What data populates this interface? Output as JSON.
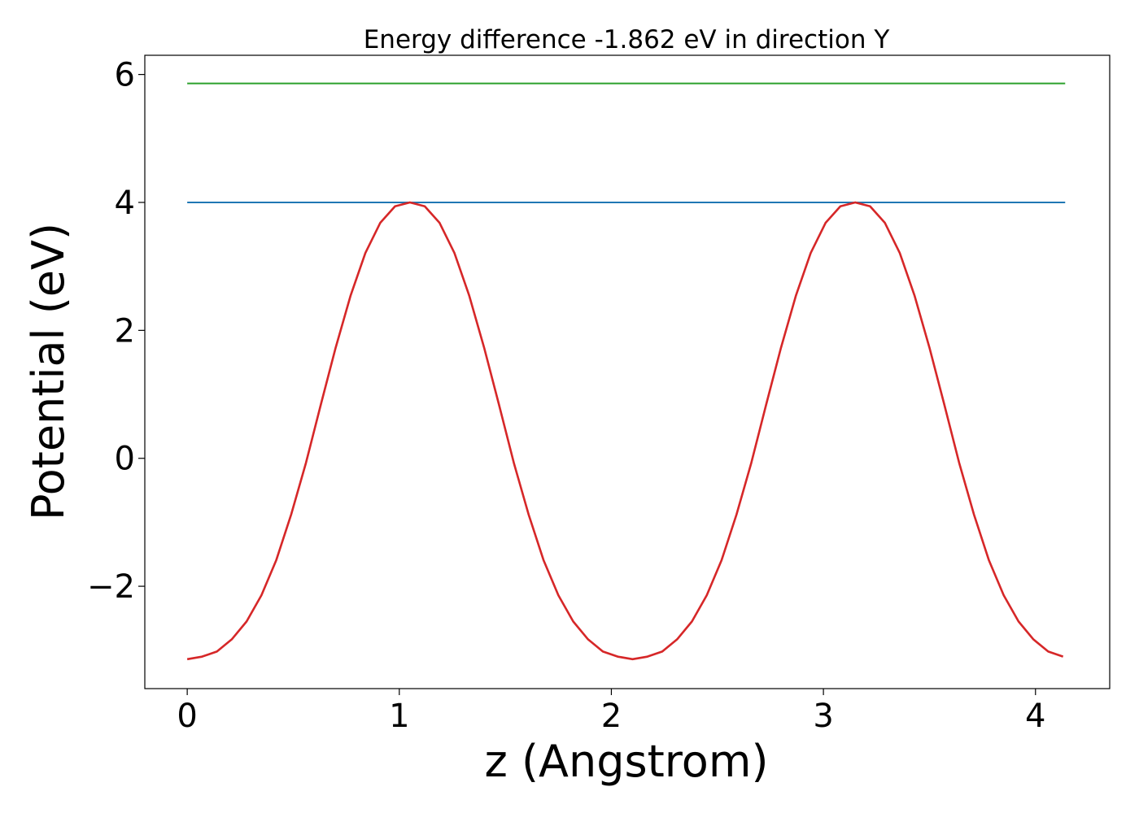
{
  "chart_data": {
    "type": "line",
    "title": "Energy difference -1.862 eV in direction Y",
    "xlabel": "z (Angstrom)",
    "ylabel": "Potential (eV)",
    "xlim": [
      -0.2,
      4.35
    ],
    "ylim": [
      -3.6,
      6.3
    ],
    "xticks": [
      0,
      1,
      2,
      3,
      4
    ],
    "xtick_labels": [
      "0",
      "1",
      "2",
      "3",
      "4"
    ],
    "yticks": [
      -2,
      0,
      2,
      4,
      6
    ],
    "ytick_labels": [
      "−2",
      "0",
      "2",
      "4",
      "6"
    ],
    "grid": false,
    "series": [
      {
        "color": "#2ca02c",
        "style": "horizontal",
        "x": [
          0,
          4.14
        ],
        "y": [
          5.86,
          5.86
        ]
      },
      {
        "color": "#1f77b4",
        "style": "horizontal",
        "x": [
          0,
          4.14
        ],
        "y": [
          4.0,
          4.0
        ]
      },
      {
        "color": "#d62728",
        "style": "curve",
        "x": [
          0.0,
          0.07,
          0.14,
          0.21,
          0.28,
          0.35,
          0.42,
          0.49,
          0.56,
          0.63,
          0.7,
          0.77,
          0.84,
          0.91,
          0.98,
          1.05,
          1.12,
          1.19,
          1.26,
          1.33,
          1.4,
          1.47,
          1.54,
          1.61,
          1.68,
          1.75,
          1.82,
          1.89,
          1.96,
          2.03,
          2.1,
          2.17,
          2.24,
          2.31,
          2.38,
          2.45,
          2.52,
          2.59,
          2.66,
          2.73,
          2.8,
          2.87,
          2.94,
          3.01,
          3.08,
          3.15,
          3.22,
          3.29,
          3.36,
          3.43,
          3.5,
          3.57,
          3.64,
          3.71,
          3.78,
          3.85,
          3.92,
          3.99,
          4.06,
          4.13
        ],
        "y": [
          -3.14,
          -3.1,
          -3.02,
          -2.83,
          -2.55,
          -2.14,
          -1.59,
          -0.88,
          -0.07,
          0.84,
          1.73,
          2.54,
          3.21,
          3.68,
          3.94,
          4.0,
          3.94,
          3.68,
          3.21,
          2.54,
          1.73,
          0.84,
          -0.07,
          -0.88,
          -1.59,
          -2.14,
          -2.55,
          -2.83,
          -3.02,
          -3.1,
          -3.14,
          -3.1,
          -3.02,
          -2.83,
          -2.55,
          -2.14,
          -1.59,
          -0.88,
          -0.07,
          0.84,
          1.73,
          2.54,
          3.21,
          3.68,
          3.94,
          4.0,
          3.94,
          3.68,
          3.21,
          2.54,
          1.73,
          0.84,
          -0.07,
          -0.88,
          -1.59,
          -2.14,
          -2.55,
          -2.83,
          -3.02,
          -3.1
        ]
      }
    ]
  }
}
